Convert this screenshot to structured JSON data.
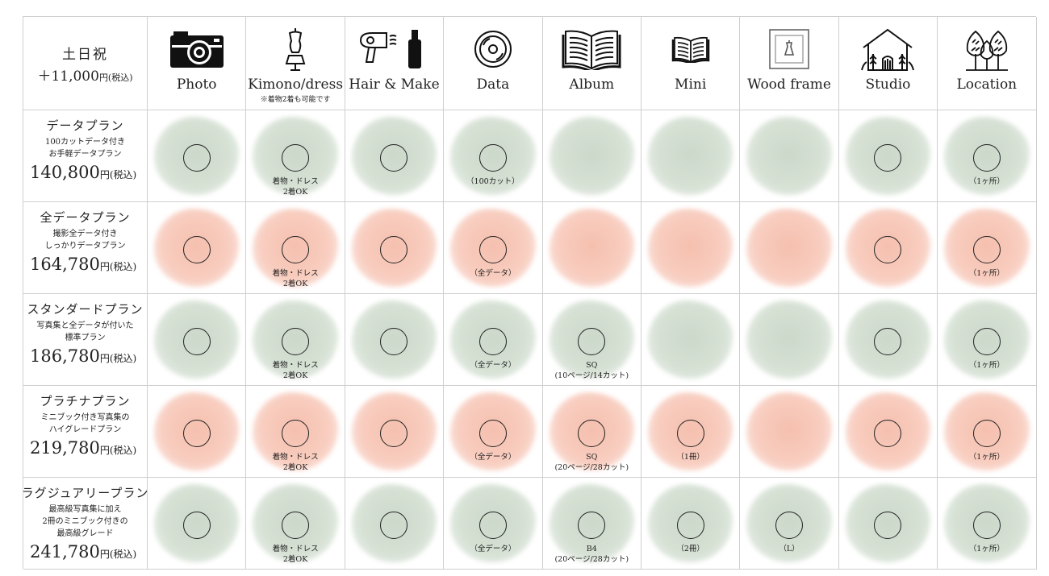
{
  "header": {
    "days": "土日祝",
    "surcharge": "＋11,000",
    "surcharge_unit": "円(税込)"
  },
  "features": [
    {
      "label": "Photo",
      "icon": "camera-icon"
    },
    {
      "label": "Kimono/dress",
      "note": "※着物2着も可能です",
      "icon": "dress-mannequin-icon"
    },
    {
      "label": "Hair & Make",
      "icon": "hairdryer-mascara-icon"
    },
    {
      "label": "Data",
      "icon": "disc-icon"
    },
    {
      "label": "Album",
      "icon": "open-book-icon"
    },
    {
      "label": "Mini",
      "icon": "small-book-icon"
    },
    {
      "label": "Wood frame",
      "icon": "picture-frame-icon"
    },
    {
      "label": "Studio",
      "icon": "house-plants-icon"
    },
    {
      "label": "Location",
      "icon": "trees-icon"
    }
  ],
  "plans": [
    {
      "name": "データプラン",
      "desc": "100カットデータ付き\nお手軽データプラン",
      "price": "140,800",
      "tax": "円(税込)",
      "color": "green",
      "cells": [
        {
          "mark": "○",
          "note": ""
        },
        {
          "mark": "○",
          "note": "着物・ドレス\n2着OK"
        },
        {
          "mark": "○",
          "note": ""
        },
        {
          "mark": "○",
          "note": "（100カット）"
        },
        {
          "mark": "",
          "note": ""
        },
        {
          "mark": "",
          "note": ""
        },
        {
          "mark": "",
          "note": ""
        },
        {
          "mark": "○",
          "note": ""
        },
        {
          "mark": "○",
          "note": "（1ヶ所）"
        }
      ]
    },
    {
      "name": "全データプラン",
      "desc": "撮影全データ付き\nしっかりデータプラン",
      "price": "164,780",
      "tax": "円(税込)",
      "color": "pink",
      "cells": [
        {
          "mark": "○",
          "note": ""
        },
        {
          "mark": "○",
          "note": "着物・ドレス\n2着OK"
        },
        {
          "mark": "○",
          "note": ""
        },
        {
          "mark": "○",
          "note": "（全データ）"
        },
        {
          "mark": "",
          "note": ""
        },
        {
          "mark": "",
          "note": ""
        },
        {
          "mark": "",
          "note": ""
        },
        {
          "mark": "○",
          "note": ""
        },
        {
          "mark": "○",
          "note": "（1ヶ所）"
        }
      ]
    },
    {
      "name": "スタンダードプラン",
      "desc": "写真集と全データが付いた\n標準プラン",
      "price": "186,780",
      "tax": "円(税込)",
      "color": "green",
      "cells": [
        {
          "mark": "○",
          "note": ""
        },
        {
          "mark": "○",
          "note": "着物・ドレス\n2着OK"
        },
        {
          "mark": "○",
          "note": ""
        },
        {
          "mark": "○",
          "note": "（全データ）"
        },
        {
          "mark": "○",
          "note": "SQ\n(10ページ/14カット)"
        },
        {
          "mark": "",
          "note": ""
        },
        {
          "mark": "",
          "note": ""
        },
        {
          "mark": "○",
          "note": ""
        },
        {
          "mark": "○",
          "note": "（1ヶ所）"
        }
      ]
    },
    {
      "name": "プラチナプラン",
      "desc": "ミニブック付き写真集の\nハイグレードプラン",
      "price": "219,780",
      "tax": "円(税込)",
      "color": "pink",
      "cells": [
        {
          "mark": "○",
          "note": ""
        },
        {
          "mark": "○",
          "note": "着物・ドレス\n2着OK"
        },
        {
          "mark": "○",
          "note": ""
        },
        {
          "mark": "○",
          "note": "（全データ）"
        },
        {
          "mark": "○",
          "note": "SQ\n(20ページ/28カット)"
        },
        {
          "mark": "○",
          "note": "（1冊）"
        },
        {
          "mark": "",
          "note": ""
        },
        {
          "mark": "○",
          "note": ""
        },
        {
          "mark": "○",
          "note": "（1ヶ所）"
        }
      ]
    },
    {
      "name": "ラグジュアリープラン",
      "desc": "最高級写真集に加え\n2冊のミニブック付きの\n最高級グレード",
      "price": "241,780",
      "tax": "円(税込)",
      "color": "green",
      "cells": [
        {
          "mark": "○",
          "note": ""
        },
        {
          "mark": "○",
          "note": "着物・ドレス\n2着OK"
        },
        {
          "mark": "○",
          "note": ""
        },
        {
          "mark": "○",
          "note": "（全データ）"
        },
        {
          "mark": "○",
          "note": "B4\n(20ページ/28カット)"
        },
        {
          "mark": "○",
          "note": "（2冊）"
        },
        {
          "mark": "○",
          "note": "（L）"
        },
        {
          "mark": "○",
          "note": ""
        },
        {
          "mark": "○",
          "note": "（1ヶ所）"
        }
      ]
    }
  ],
  "colors": {
    "green": "#d6e1d4",
    "pink": "#f8cdbf",
    "border": "#cfcfcf"
  }
}
